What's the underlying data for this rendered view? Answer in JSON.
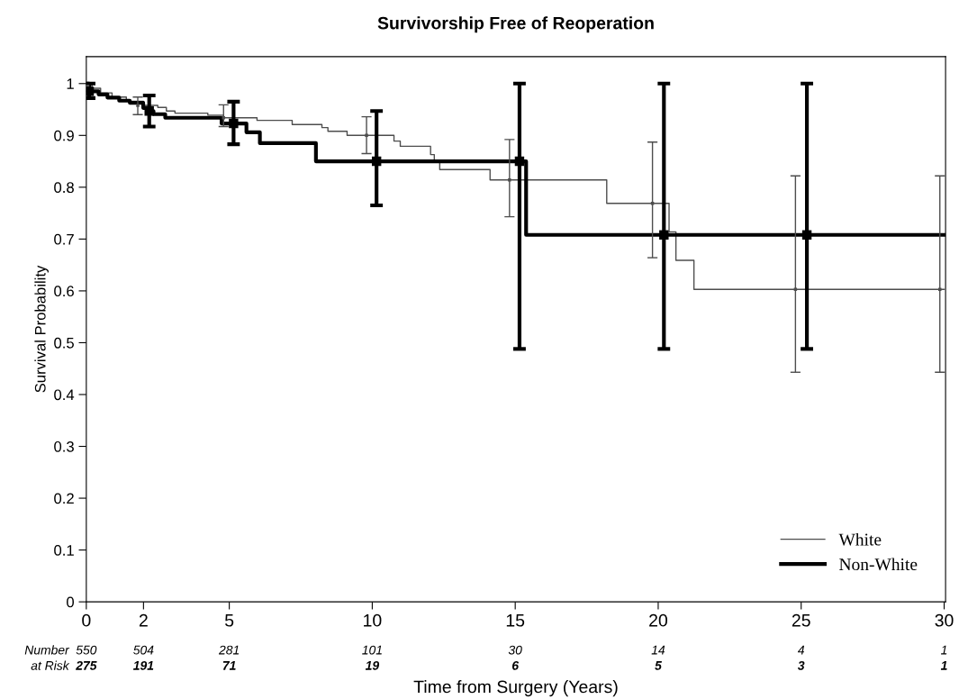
{
  "chart_data": {
    "type": "step",
    "title": "Survivorship Free of Reoperation",
    "xlabel": "Time from Surgery (Years)",
    "ylabel": "Survival Probability",
    "xlim": [
      0,
      30.05
    ],
    "ylim": [
      0,
      1.052
    ],
    "xticks": [
      0,
      2,
      5,
      10,
      15,
      20,
      25,
      30
    ],
    "yticks": [
      0,
      0.1,
      0.2,
      0.3,
      0.4,
      0.5,
      0.6,
      0.7,
      0.8,
      0.9,
      1
    ],
    "grid": false,
    "legend": "bottom right",
    "marker": "none",
    "line_style": "solid",
    "series": [
      {
        "name": "White",
        "color": "#4d4d4d",
        "x": [
          0,
          0.2,
          0.5,
          0.9,
          1.4,
          2.0,
          2.5,
          2.8,
          3.1,
          4.25,
          4.8,
          5.97,
          7.2,
          8.24,
          8.45,
          9.12,
          10.76,
          10.98,
          12.04,
          12.17,
          12.36,
          14.12,
          18.2,
          20.38,
          20.62,
          21.25,
          30
        ],
        "values": [
          1.0,
          0.991,
          0.982,
          0.974,
          0.966,
          0.958,
          0.954,
          0.947,
          0.943,
          0.939,
          0.934,
          0.929,
          0.921,
          0.915,
          0.908,
          0.9,
          0.889,
          0.879,
          0.863,
          0.85,
          0.834,
          0.814,
          0.769,
          0.714,
          0.659,
          0.603,
          0.603
        ]
      },
      {
        "name": "Non-White",
        "color": "#000000",
        "x": [
          0,
          0.1,
          0.43,
          0.74,
          1.15,
          1.52,
          1.99,
          2.14,
          2.35,
          2.76,
          4.73,
          5.6,
          6.07,
          8.03,
          15.38,
          30
        ],
        "values": [
          1.0,
          0.985,
          0.979,
          0.973,
          0.967,
          0.963,
          0.953,
          0.947,
          0.941,
          0.934,
          0.923,
          0.906,
          0.885,
          0.85,
          0.708,
          0.708
        ]
      },
      {
        "type": "scatter",
        "marker": "square",
        "color": "#4d4d4d",
        "x": [
          0.05,
          1.8,
          4.8,
          9.8,
          14.8,
          19.8,
          24.8,
          29.85
        ],
        "values": [
          0.995,
          0.958,
          0.934,
          0.9,
          0.814,
          0.769,
          0.603,
          0.603
        ],
        "errors": [
          [
            0.985,
            1.0
          ],
          [
            0.94,
            0.974
          ],
          [
            0.917,
            0.959
          ],
          [
            0.865,
            0.936
          ],
          [
            0.743,
            0.892
          ],
          [
            0.664,
            0.887
          ],
          [
            0.443,
            0.822
          ],
          [
            0.443,
            0.822
          ]
        ]
      },
      {
        "type": "scatter",
        "marker": "square",
        "color": "#000000",
        "x": [
          0.1,
          2.2,
          5.15,
          10.15,
          15.15,
          20.2,
          25.2
        ],
        "values": [
          0.985,
          0.947,
          0.923,
          0.85,
          0.85,
          0.708,
          0.708
        ],
        "errors": [
          [
            0.972,
            1.0
          ],
          [
            0.917,
            0.977
          ],
          [
            0.883,
            0.965
          ],
          [
            0.765,
            0.947
          ],
          [
            0.488,
            1.0
          ],
          [
            0.488,
            1.0
          ],
          [
            0.488,
            1.0
          ]
        ]
      }
    ],
    "annotations": [
      "Number",
      "at Risk",
      "550",
      "504",
      "281",
      "101",
      "30",
      "14",
      "4",
      "1",
      "275",
      "191",
      "71",
      "19",
      "6",
      "5",
      "3",
      "1"
    ]
  }
}
